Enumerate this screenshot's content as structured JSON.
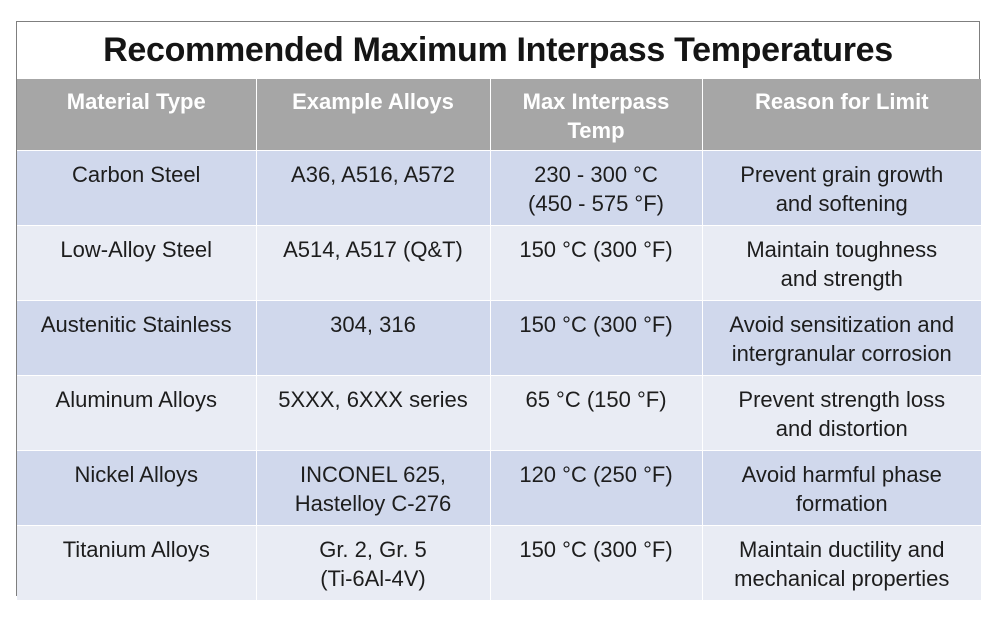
{
  "title": "Recommended Maximum Interpass Temperatures",
  "columns": [
    "Material Type",
    "Example Alloys",
    "Max Interpass Temp",
    "Reason for Limit"
  ],
  "rows": [
    {
      "material": "Carbon Steel",
      "alloys": "A36, A516, A572",
      "temp": [
        "230 - 300 °C",
        "(450 - 575 °F)"
      ],
      "reason": [
        "Prevent grain growth",
        "and softening"
      ]
    },
    {
      "material": "Low-Alloy Steel",
      "alloys": "A514, A517 (Q&T)",
      "temp": [
        "150 °C (300 °F)"
      ],
      "reason": [
        "Maintain toughness",
        "and strength"
      ]
    },
    {
      "material": "Austenitic Stainless",
      "alloys": "304, 316",
      "temp": [
        "150 °C (300 °F)"
      ],
      "reason": [
        "Avoid sensitization and",
        "intergranular corrosion"
      ]
    },
    {
      "material": "Aluminum Alloys",
      "alloys": "5XXX, 6XXX series",
      "temp": [
        "65 °C (150 °F)"
      ],
      "reason": [
        "Prevent strength loss",
        "and distortion"
      ]
    },
    {
      "material": "Nickel Alloys",
      "alloys": [
        "INCONEL 625,",
        "Hastelloy C-276"
      ],
      "temp": [
        "120 °C (250 °F)"
      ],
      "reason": [
        "Avoid harmful phase",
        "formation"
      ]
    },
    {
      "material": "Titanium Alloys",
      "alloys": [
        "Gr. 2, Gr. 5",
        "(Ti-6Al-4V)"
      ],
      "temp": [
        "150 °C (300 °F)"
      ],
      "reason": [
        "Maintain ductility and",
        "mechanical properties"
      ]
    }
  ],
  "colors": {
    "header_bg": "#a6a6a6",
    "header_text": "#ffffff",
    "row_odd_bg": "#d0d8ec",
    "row_even_bg": "#e9ecf4",
    "border": "#7f7f7f"
  }
}
